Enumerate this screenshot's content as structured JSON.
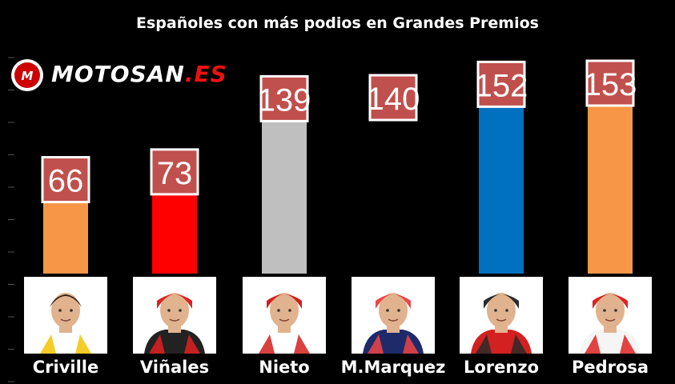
{
  "chart_data": {
    "type": "bar",
    "title": "Españoles con más podios en Grandes Premios",
    "categories": [
      "Criville",
      "Viñales",
      "Nieto",
      "M.Marquez",
      "Lorenzo",
      "Pedrosa"
    ],
    "values": [
      66,
      73,
      139,
      140,
      152,
      153
    ],
    "bar_colors": [
      "#f79646",
      "#ff0000",
      "#bfbfbf",
      "#000000",
      "#0070c0",
      "#f79646"
    ],
    "label_box_color": "#c0504d",
    "ylim": [
      0,
      190
    ],
    "grid": false
  },
  "logo": {
    "prefix": "MOTOSAN",
    "suffix": ".ES",
    "badge_colors": {
      "ring": "#ffffff",
      "fill": "#cc0000"
    }
  },
  "photos": [
    {
      "rider": "Criville",
      "helmet": "none",
      "jersey_color": "#ffffff",
      "accent": "#f2c400"
    },
    {
      "rider": "Viñales",
      "helmet": "cap",
      "jersey_color": "#222222",
      "accent": "#e02020"
    },
    {
      "rider": "Nieto",
      "helmet": "cap",
      "jersey_color": "#ffffff",
      "accent": "#d41e1e"
    },
    {
      "rider": "M.Marquez",
      "helmet": "cap",
      "jersey_color": "#1f2a6b",
      "accent": "#e44"
    },
    {
      "rider": "Lorenzo",
      "helmet": "cap",
      "jersey_color": "#d32020",
      "accent": "#2a2a2a"
    },
    {
      "rider": "Pedrosa",
      "helmet": "cap",
      "jersey_color": "#f5f5f5",
      "accent": "#d22"
    }
  ]
}
